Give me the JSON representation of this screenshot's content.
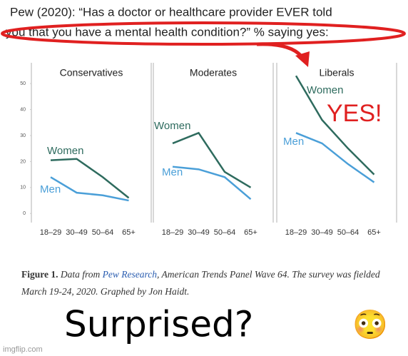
{
  "header": {
    "title_lines": [
      "Pew (2020): “Has a doctor or healthcare provider EVER told",
      "you that you have a mental health condition?” % saying yes:"
    ]
  },
  "chart_data": [
    {
      "type": "line",
      "title": "Conservatives",
      "categories": [
        "18–29",
        "30–49",
        "50–64",
        "65+"
      ],
      "series": [
        {
          "name": "Women",
          "color": "#2e6b5e",
          "values": [
            20.5,
            21,
            14,
            6
          ]
        },
        {
          "name": "Men",
          "color": "#4a9fd8",
          "values": [
            14,
            8,
            7,
            5
          ]
        }
      ],
      "ylim": [
        -3.5,
        58
      ],
      "yticks": [
        0,
        10,
        20,
        30,
        40,
        50
      ]
    },
    {
      "type": "line",
      "title": "Moderates",
      "categories": [
        "18–29",
        "30–49",
        "50–64",
        "65+"
      ],
      "series": [
        {
          "name": "Women",
          "color": "#2e6b5e",
          "values": [
            27,
            31,
            16,
            10
          ]
        },
        {
          "name": "Men",
          "color": "#4a9fd8",
          "values": [
            18,
            17,
            14,
            5.5
          ]
        }
      ],
      "ylim": [
        -3.5,
        58
      ]
    },
    {
      "type": "line",
      "title": "Liberals",
      "annotation": "YES!",
      "categories": [
        "18–29",
        "30–49",
        "50–64",
        "65+"
      ],
      "series": [
        {
          "name": "Women",
          "color": "#2e6b5e",
          "values": [
            53,
            36,
            25,
            15
          ]
        },
        {
          "name": "Men",
          "color": "#4a9fd8",
          "values": [
            31,
            27,
            19,
            12
          ]
        }
      ],
      "ylim": [
        -3.5,
        58
      ]
    }
  ],
  "caption": {
    "label": "Figure 1.",
    "text_a": " Data from ",
    "link": "Pew Research",
    "text_b": ", American Trends Panel Wave 64. The survey was fielded",
    "line2": "March 19-24, 2020. Graphed by Jon Haidt."
  },
  "meme": {
    "text": "Surprised?",
    "emoji": "😳"
  },
  "watermark": "imgflip.com"
}
